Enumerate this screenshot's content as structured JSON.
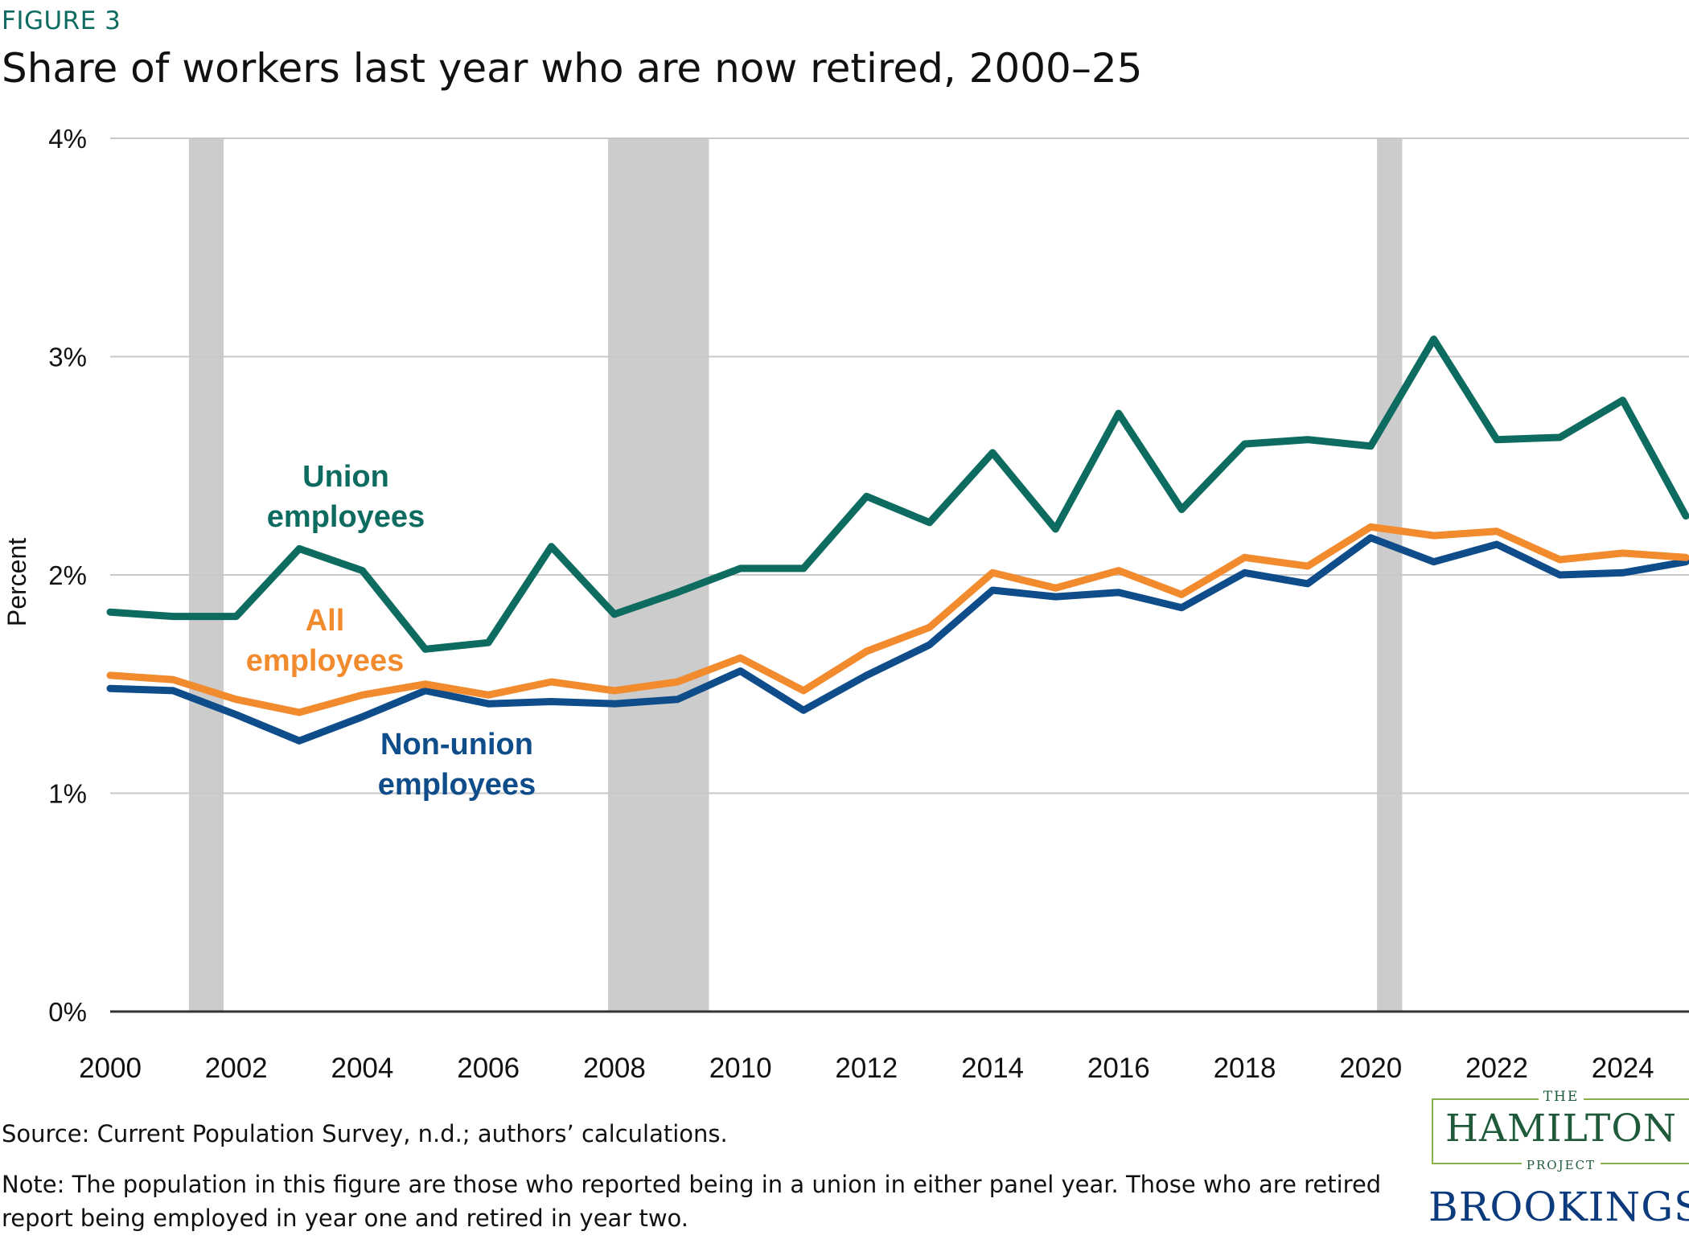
{
  "figure_label": "FIGURE 3",
  "title": "Share of workers last year who are now retired, 2000–25",
  "source": "Source: Current Population Survey, n.d.; authors’ calculations.",
  "note": "Note: The population in this figure are those who reported being in a union in either panel year. Those who are retired report being employed in year one and retired in year two.",
  "logo": {
    "hamilton_the": "THE",
    "hamilton_name": "HAMILTON",
    "hamilton_project": "PROJECT",
    "brookings": "BROOKINGS"
  },
  "colors": {
    "union": "#0d6b5f",
    "all": "#f28a2e",
    "non_union": "#0f4c8a",
    "recession": "#cccccc",
    "grid": "#c8c8c8"
  },
  "chart_data": {
    "type": "line",
    "title": "Share of workers last year who are now retired, 2000–25",
    "xlabel": "",
    "ylabel": "Percent",
    "xlim": [
      2000,
      2025
    ],
    "ylim": [
      0,
      4
    ],
    "x_ticks": [
      2000,
      2002,
      2004,
      2006,
      2008,
      2010,
      2012,
      2014,
      2016,
      2018,
      2020,
      2022,
      2024
    ],
    "x_tick_labels": [
      "2000",
      "2002",
      "2004",
      "2006",
      "2008",
      "2010",
      "2012",
      "2014",
      "2016",
      "2018",
      "2020",
      "2022",
      "2024"
    ],
    "y_ticks": [
      0,
      1,
      2,
      3,
      4
    ],
    "y_tick_labels": [
      "0%",
      "1%",
      "2%",
      "3%",
      "4%"
    ],
    "grid": "horizontal",
    "recession_bands": [
      {
        "start": 2001.25,
        "end": 2001.8
      },
      {
        "start": 2007.9,
        "end": 2009.5
      },
      {
        "start": 2020.1,
        "end": 2020.5
      }
    ],
    "x": [
      2000,
      2001,
      2002,
      2003,
      2004,
      2005,
      2006,
      2007,
      2008,
      2009,
      2010,
      2011,
      2012,
      2013,
      2014,
      2015,
      2016,
      2017,
      2018,
      2019,
      2020,
      2021,
      2022,
      2023,
      2024,
      2025
    ],
    "series": [
      {
        "key": "union",
        "name": "Union employees",
        "label_lines": [
          "Union",
          "employees"
        ],
        "values": [
          1.83,
          1.81,
          1.81,
          2.12,
          2.02,
          1.66,
          1.69,
          2.13,
          1.82,
          1.92,
          2.03,
          2.03,
          2.36,
          2.24,
          2.56,
          2.21,
          2.74,
          2.3,
          2.6,
          2.62,
          2.59,
          3.08,
          2.62,
          2.63,
          2.8,
          2.27
        ]
      },
      {
        "key": "all",
        "name": "All employees",
        "label_lines": [
          "All",
          "employees"
        ],
        "values": [
          1.54,
          1.52,
          1.43,
          1.37,
          1.45,
          1.5,
          1.45,
          1.51,
          1.47,
          1.51,
          1.62,
          1.47,
          1.65,
          1.76,
          2.01,
          1.94,
          2.02,
          1.91,
          2.08,
          2.04,
          2.22,
          2.18,
          2.2,
          2.07,
          2.1,
          2.08
        ]
      },
      {
        "key": "non_union",
        "name": "Non-union employees",
        "label_lines": [
          "Non-union",
          "employees"
        ],
        "values": [
          1.48,
          1.47,
          1.36,
          1.24,
          1.35,
          1.47,
          1.41,
          1.42,
          1.41,
          1.43,
          1.56,
          1.38,
          1.54,
          1.68,
          1.93,
          1.9,
          1.92,
          1.85,
          2.01,
          1.96,
          2.17,
          2.06,
          2.14,
          2.0,
          2.01,
          2.06
        ]
      }
    ]
  }
}
